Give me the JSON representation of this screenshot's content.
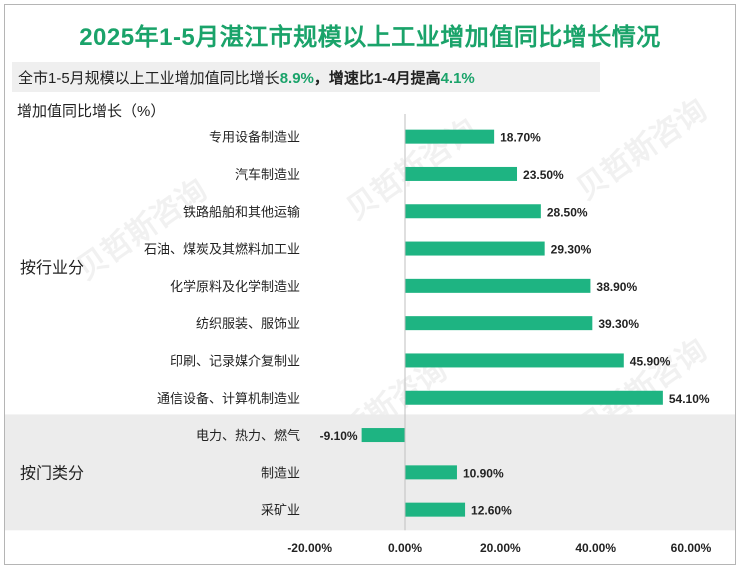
{
  "title": "2025年1-5月湛江市规模以上工业增加值同比增长情况",
  "summary": {
    "prefix": "全市1-5月规模以上工业增加值同比增长",
    "value1": "8.9%",
    "middle": "，增速比1-4月提高",
    "value2": "4.1%"
  },
  "watermark": "贝哲斯咨询",
  "colors": {
    "bar": "#1eb482",
    "accent": "#1aa36a",
    "band": "#ececec"
  },
  "chart_data": {
    "type": "bar",
    "orientation": "horizontal",
    "ylabel": "增加值同比增长（%）",
    "xlim": [
      -20,
      60
    ],
    "x_ticks": [
      -20,
      0,
      20,
      40,
      60
    ],
    "x_tick_labels": [
      "-20.00%",
      "0.00%",
      "20.00%",
      "40.00%",
      "60.00%"
    ],
    "groups": [
      {
        "name": "按行业分",
        "categories": [
          "专用设备制造业",
          "汽车制造业",
          "铁路船舶和其他运输",
          "石油、煤炭及其燃料加工业",
          "化学原料及化学制造业",
          "纺织服装、服饰业",
          "印刷、记录媒介复制业",
          "通信设备、计算机制造业"
        ],
        "values": [
          18.7,
          23.5,
          28.5,
          29.3,
          38.9,
          39.3,
          45.9,
          54.1
        ],
        "labels": [
          "18.70%",
          "23.50%",
          "28.50%",
          "29.30%",
          "38.90%",
          "39.30%",
          "45.90%",
          "54.10%"
        ]
      },
      {
        "name": "按门类分",
        "categories": [
          "电力、热力、燃气",
          "制造业",
          "采矿业"
        ],
        "values": [
          -9.1,
          10.9,
          12.6
        ],
        "labels": [
          "-9.10%",
          "10.90%",
          "12.60%"
        ]
      }
    ]
  }
}
